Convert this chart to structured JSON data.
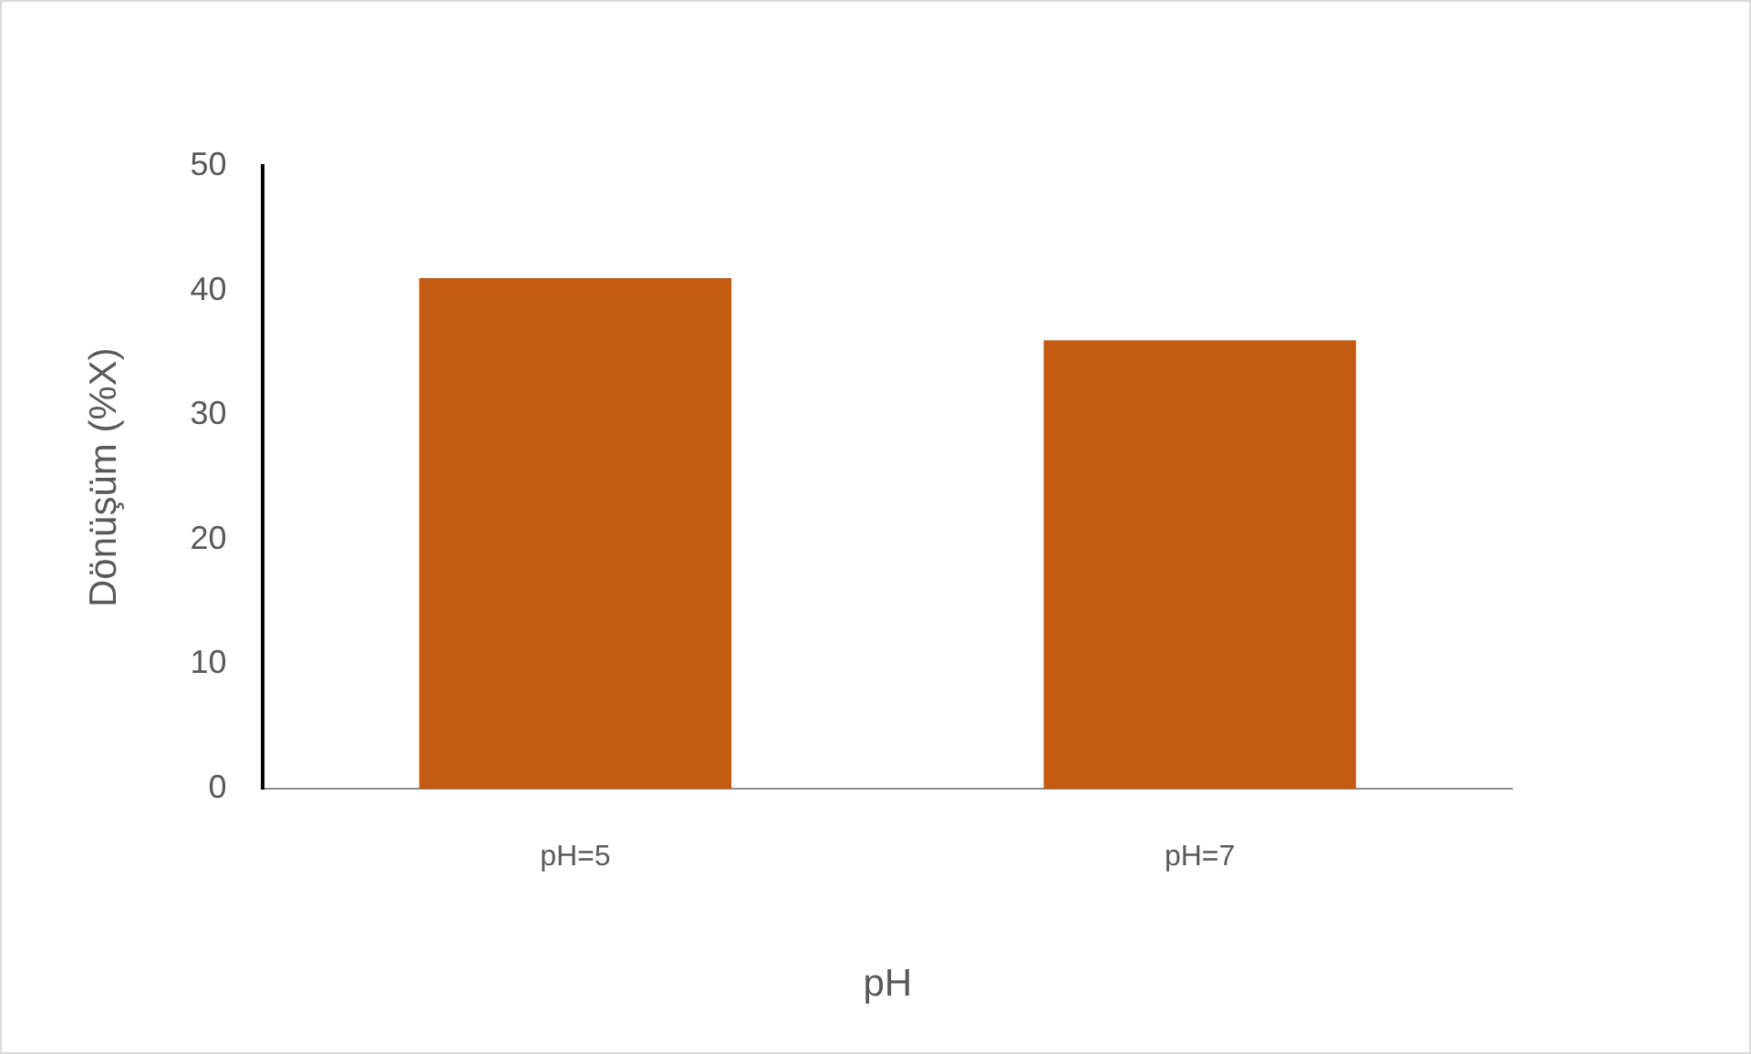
{
  "chart_data": {
    "type": "bar",
    "xlabel": "pH",
    "ylabel": "Dönüşüm (%X)",
    "categories": [
      "pH=5",
      "pH=7"
    ],
    "values": [
      41,
      36
    ],
    "color": "#c55a11",
    "ylim": [
      0,
      50
    ],
    "yticks": [
      0,
      10,
      20,
      30,
      40,
      50
    ],
    "grid": false,
    "legend": false
  }
}
